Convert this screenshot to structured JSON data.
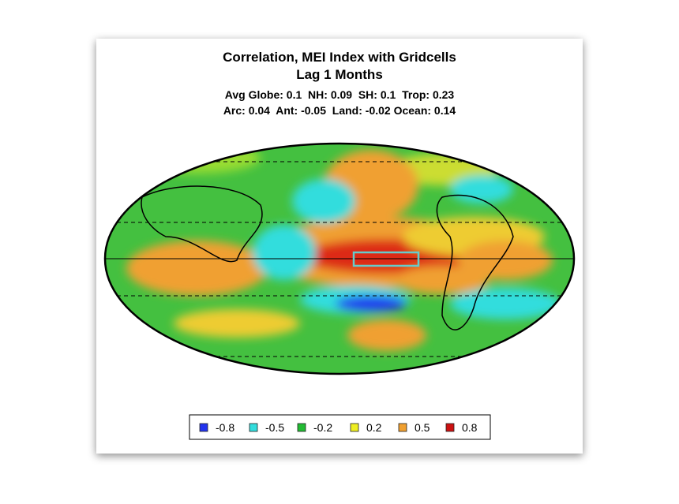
{
  "header": {
    "title": "Correlation, MEI Index with Gridcells",
    "subtitle": "Lag 1 Months",
    "stats": [
      "Avg Globe: 0.1  NH: 0.09  SH: 0.1  Trop: 0.23",
      "Arc: 0.04  Ant: -0.05  Land: -0.02 Ocean: 0.14"
    ]
  },
  "legend": {
    "items": [
      {
        "value": -0.8,
        "color": "#2233ee"
      },
      {
        "value": -0.5,
        "color": "#33dddd"
      },
      {
        "value": -0.2,
        "color": "#22bb33"
      },
      {
        "value": 0.2,
        "color": "#eeee22"
      },
      {
        "value": 0.5,
        "color": "#f0a030"
      },
      {
        "value": 0.8,
        "color": "#cc1111"
      }
    ]
  }
}
